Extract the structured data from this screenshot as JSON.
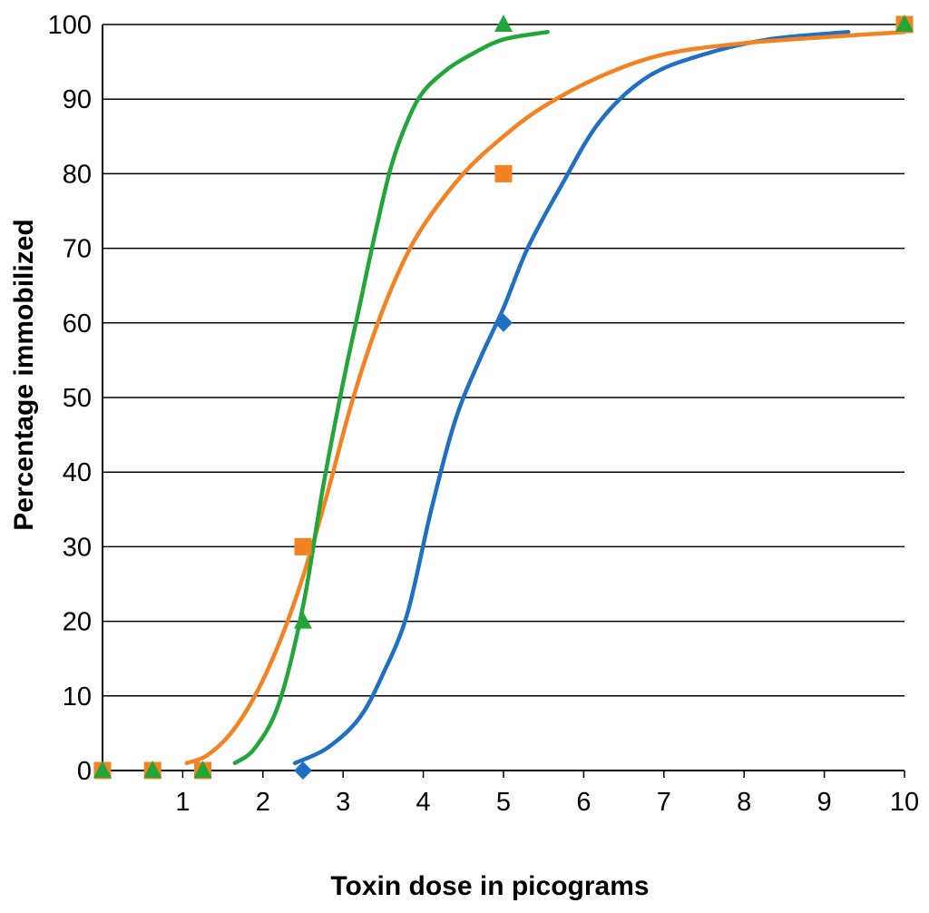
{
  "chart_data": {
    "type": "scatter",
    "title": "",
    "xlabel": "Toxin dose in picograms",
    "ylabel": "Percentage immobilized",
    "xlim": [
      0,
      10
    ],
    "ylim": [
      0,
      100
    ],
    "x_ticks": [
      1,
      2,
      3,
      4,
      5,
      6,
      7,
      8,
      9,
      10
    ],
    "y_ticks": [
      0,
      10,
      20,
      30,
      40,
      50,
      60,
      70,
      80,
      90,
      100
    ],
    "grid": "horizontal",
    "legend": "none",
    "series": [
      {
        "name": "blue",
        "color": "#1f6fc4",
        "marker": "diamond",
        "points": [
          {
            "x": 2.5,
            "y": 0
          },
          {
            "x": 5,
            "y": 60
          },
          {
            "x": 10,
            "y": 100
          }
        ],
        "curve": {
          "x": [
            2.4,
            2.8,
            3.2,
            3.5,
            3.8,
            4.1,
            4.4,
            4.7,
            5.0,
            5.3,
            5.7,
            6.2,
            6.8,
            7.5,
            8.3,
            9.3
          ],
          "y": [
            1,
            3,
            7,
            13,
            21,
            35,
            47,
            55,
            62,
            70,
            78,
            87,
            93,
            96,
            98,
            99
          ]
        }
      },
      {
        "name": "orange",
        "color": "#f58220",
        "marker": "square",
        "points": [
          {
            "x": 0,
            "y": 0
          },
          {
            "x": 0.625,
            "y": 0
          },
          {
            "x": 1.25,
            "y": 0
          },
          {
            "x": 2.5,
            "y": 30
          },
          {
            "x": 5,
            "y": 80
          },
          {
            "x": 10,
            "y": 100
          }
        ],
        "curve": {
          "x": [
            1.05,
            1.3,
            1.6,
            1.9,
            2.2,
            2.5,
            2.8,
            3.1,
            3.4,
            3.7,
            4.0,
            4.5,
            5.0,
            5.5,
            6.2,
            7.0,
            8.0,
            9.0,
            10.0
          ],
          "y": [
            1,
            2,
            5,
            10,
            17,
            26,
            37,
            49,
            59,
            67,
            73,
            80,
            85,
            89,
            93,
            96,
            97.5,
            98.3,
            99
          ]
        }
      },
      {
        "name": "green",
        "color": "#22a63a",
        "marker": "triangle",
        "points": [
          {
            "x": 0,
            "y": 0
          },
          {
            "x": 0.625,
            "y": 0
          },
          {
            "x": 1.25,
            "y": 0
          },
          {
            "x": 2.5,
            "y": 20
          },
          {
            "x": 5,
            "y": 100
          },
          {
            "x": 10,
            "y": 100
          }
        ],
        "curve": {
          "x": [
            1.65,
            1.9,
            2.2,
            2.5,
            2.75,
            3.0,
            3.2,
            3.4,
            3.6,
            3.8,
            4.0,
            4.3,
            4.6,
            5.0,
            5.55
          ],
          "y": [
            1,
            3,
            9,
            22,
            38,
            52,
            62,
            72,
            81,
            87,
            91,
            94,
            96,
            98,
            99
          ]
        }
      }
    ]
  }
}
